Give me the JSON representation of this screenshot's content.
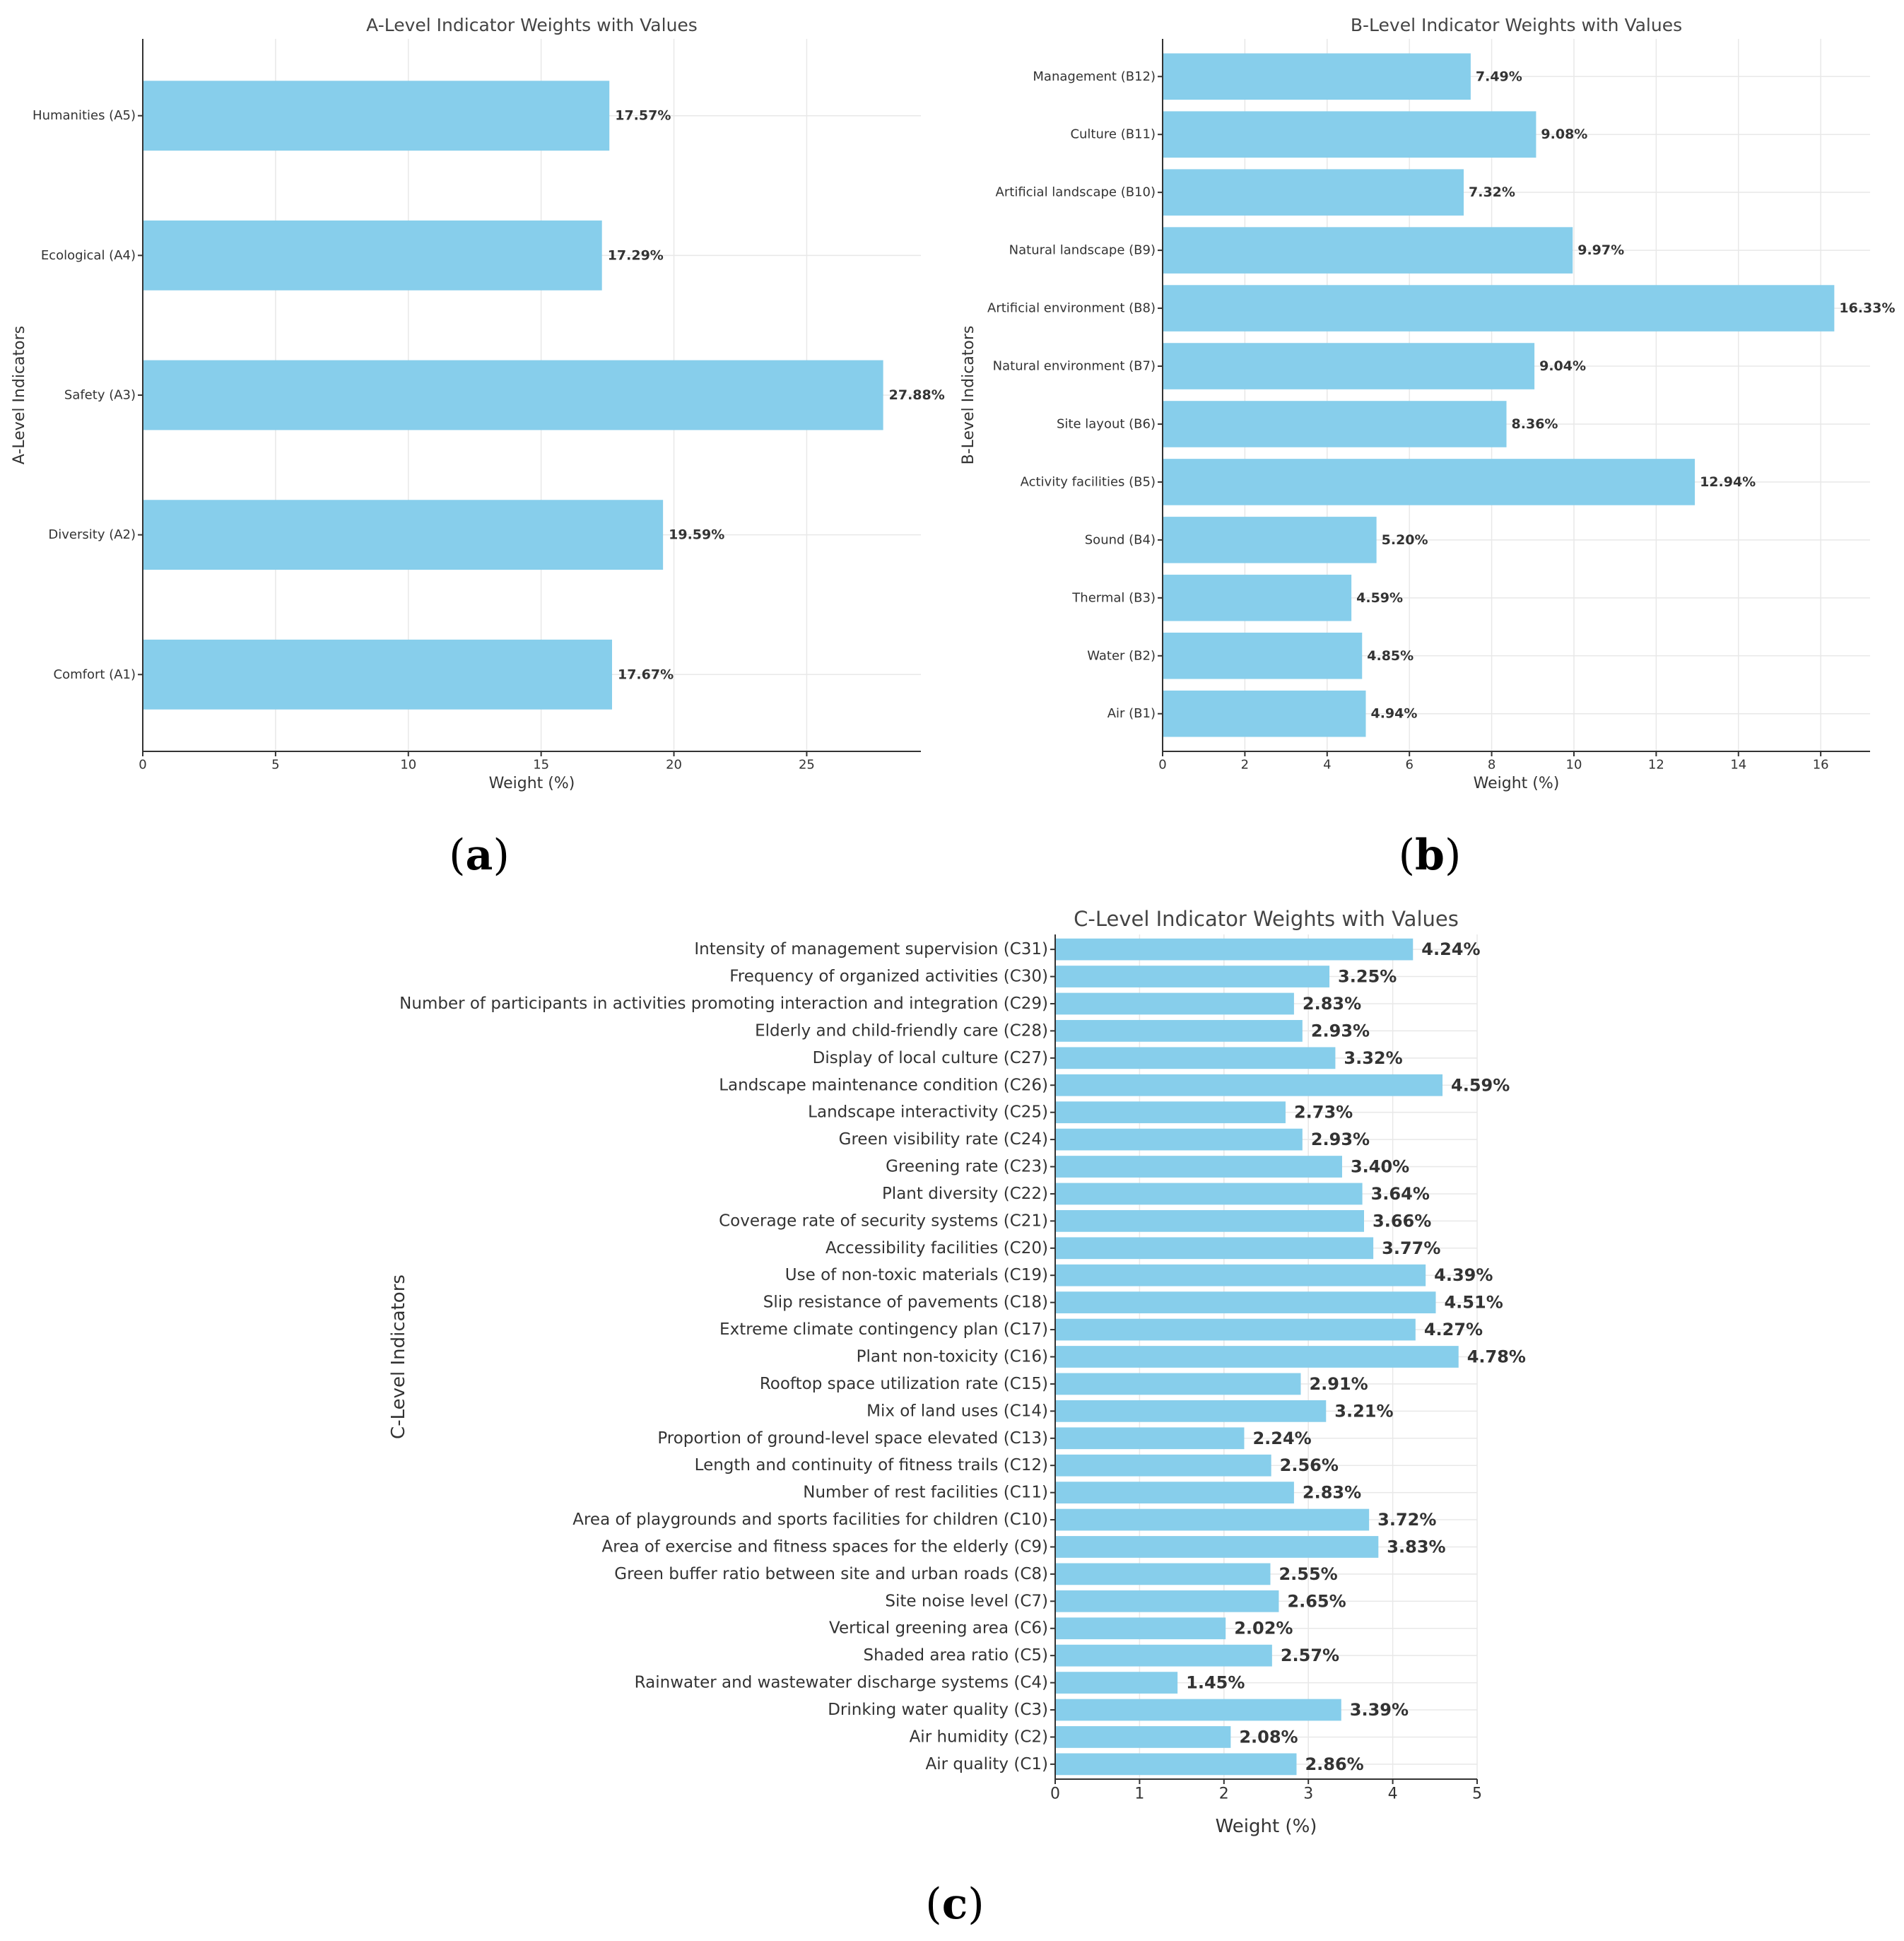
{
  "chart_data": [
    {
      "id": "a",
      "panel_label": "a",
      "type": "bar",
      "orientation": "horizontal",
      "title": "A-Level Indicator Weights with Values",
      "xlabel": "Weight (%)",
      "ylabel": "A-Level Indicators",
      "xlim": [
        0,
        29.3
      ],
      "xticks": [
        0,
        5,
        10,
        15,
        20,
        25
      ],
      "grid": true,
      "bar_color": "#87ceeb",
      "value_suffix": "%",
      "categories": [
        "Comfort (A1)",
        "Diversity (A2)",
        "Safety (A3)",
        "Ecological (A4)",
        "Humanities (A5)"
      ],
      "values": [
        17.67,
        19.59,
        27.88,
        17.29,
        17.57
      ]
    },
    {
      "id": "b",
      "panel_label": "b",
      "type": "bar",
      "orientation": "horizontal",
      "title": "B-Level Indicator Weights with Values",
      "xlabel": "Weight (%)",
      "ylabel": "B-Level Indicators",
      "xlim": [
        0,
        17.2
      ],
      "xticks": [
        0,
        2,
        4,
        6,
        8,
        10,
        12,
        14,
        16
      ],
      "grid": true,
      "bar_color": "#87ceeb",
      "value_suffix": "%",
      "categories": [
        "Air (B1)",
        "Water (B2)",
        "Thermal (B3)",
        "Sound (B4)",
        "Activity facilities (B5)",
        "Site layout (B6)",
        "Natural environment (B7)",
        "Artificial environment (B8)",
        "Natural landscape (B9)",
        "Artificial landscape (B10)",
        "Culture (B11)",
        "Management (B12)"
      ],
      "values": [
        4.94,
        4.85,
        4.59,
        5.2,
        12.94,
        8.36,
        9.04,
        16.33,
        9.97,
        7.32,
        9.08,
        7.49
      ]
    },
    {
      "id": "c",
      "panel_label": "c",
      "type": "bar",
      "orientation": "horizontal",
      "title": "C-Level Indicator Weights with Values",
      "xlabel": "Weight (%)",
      "ylabel": "C-Level Indicators",
      "xlim": [
        0,
        5.0
      ],
      "xticks": [
        0,
        1,
        2,
        3,
        4,
        5
      ],
      "grid": true,
      "bar_color": "#87ceeb",
      "value_suffix": "%",
      "categories": [
        "Air quality (C1)",
        "Air humidity (C2)",
        "Drinking water quality (C3)",
        "Rainwater and wastewater discharge systems (C4)",
        "Shaded area ratio (C5)",
        "Vertical greening area (C6)",
        "Site noise level (C7)",
        "Green buffer ratio between site and urban roads (C8)",
        "Area of exercise and fitness spaces for the elderly (C9)",
        "Area of playgrounds and sports facilities for children (C10)",
        "Number of rest facilities (C11)",
        "Length and continuity of fitness trails (C12)",
        "Proportion of ground-level space elevated (C13)",
        "Mix of land uses (C14)",
        "Rooftop space utilization rate (C15)",
        "Plant non-toxicity (C16)",
        "Extreme climate contingency plan (C17)",
        "Slip resistance of pavements (C18)",
        "Use of non-toxic materials (C19)",
        "Accessibility facilities (C20)",
        "Coverage rate of security systems (C21)",
        "Plant diversity (C22)",
        "Greening rate (C23)",
        "Green visibility rate (C24)",
        "Landscape interactivity (C25)",
        "Landscape maintenance condition (C26)",
        "Display of local culture (C27)",
        "Elderly and child-friendly care (C28)",
        "Number of participants in activities promoting interaction and integration (C29)",
        "Frequency of organized activities (C30)",
        "Intensity of management supervision (C31)"
      ],
      "values": [
        2.86,
        2.08,
        3.39,
        1.45,
        2.57,
        2.02,
        2.65,
        2.55,
        3.83,
        3.72,
        2.83,
        2.56,
        2.24,
        3.21,
        2.91,
        4.78,
        4.27,
        4.51,
        4.39,
        3.77,
        3.66,
        3.64,
        3.4,
        2.93,
        2.73,
        4.59,
        3.32,
        2.93,
        2.83,
        3.25,
        4.24
      ]
    }
  ]
}
